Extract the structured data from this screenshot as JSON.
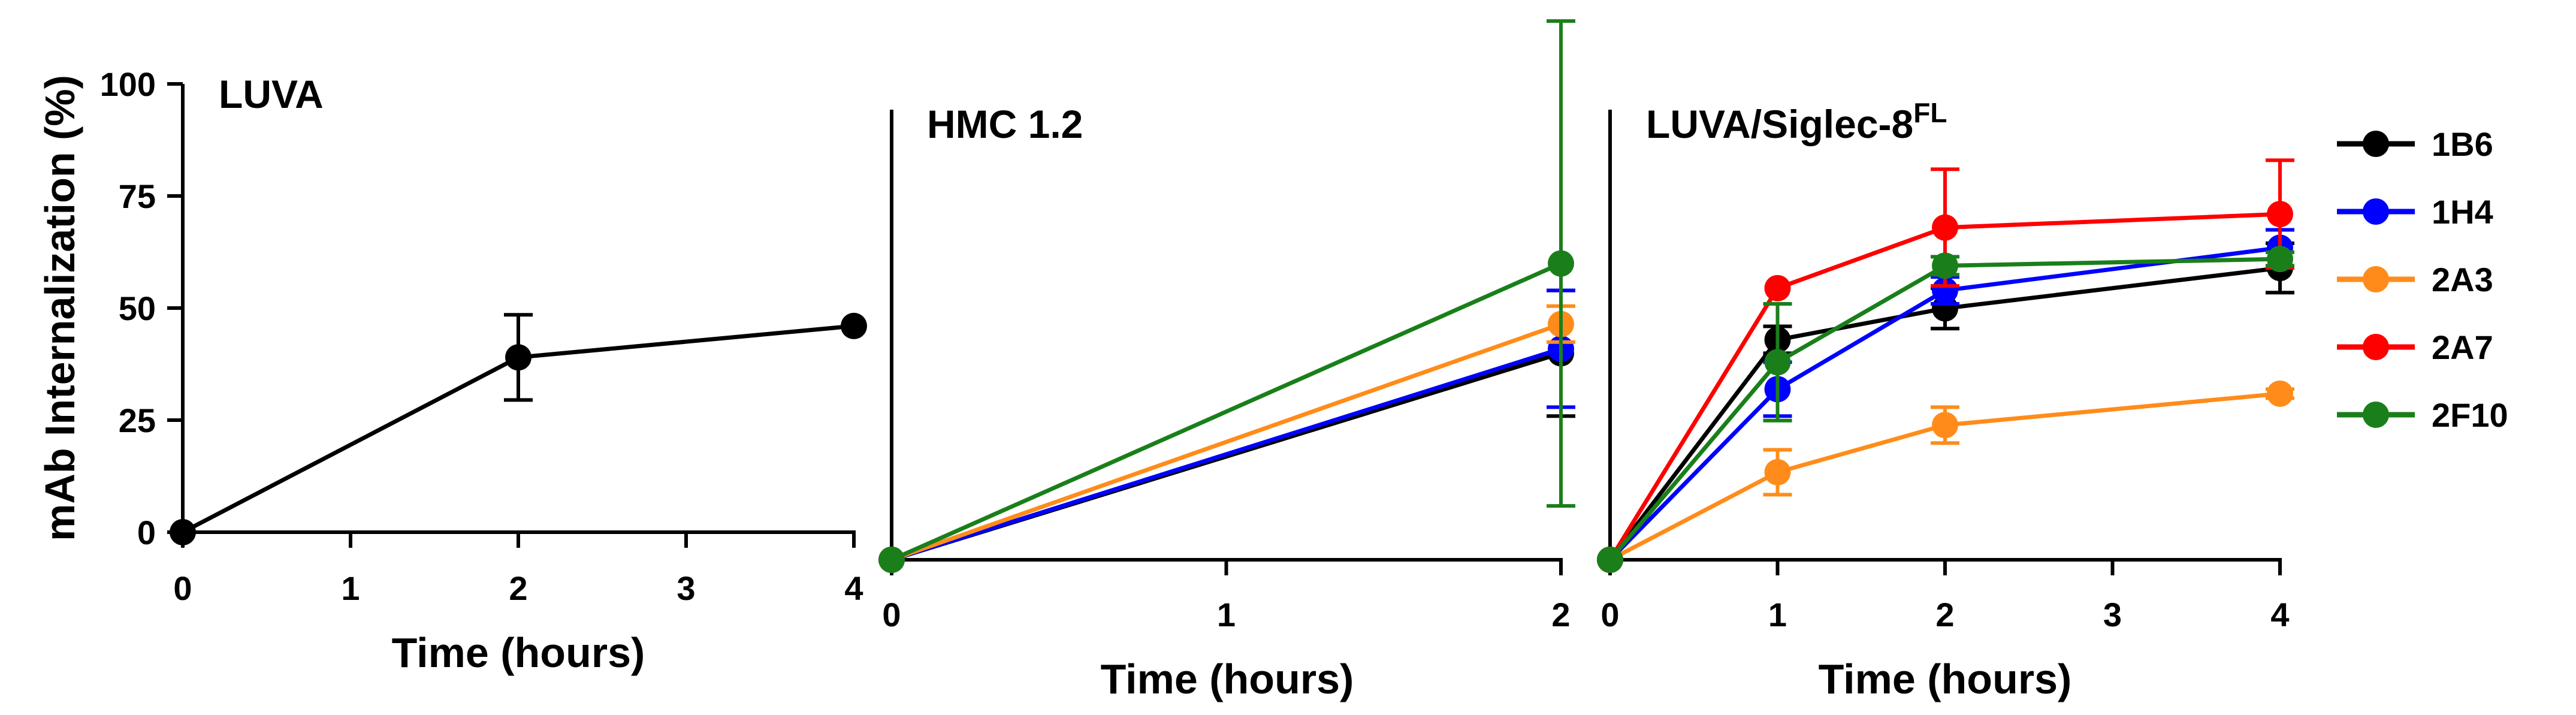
{
  "chart_data": [
    {
      "type": "line",
      "title": "LUVA",
      "ylabel": "mAb Internalization (%)",
      "xlabel": "Time (hours)",
      "xlim": [
        0,
        4
      ],
      "ylim": [
        0,
        100
      ],
      "xticks": [
        "0",
        "1",
        "2",
        "3",
        "4"
      ],
      "yticks": [
        "0",
        "25",
        "50",
        "75",
        "100"
      ],
      "series": [
        {
          "x": [
            0,
            2,
            4
          ],
          "y": [
            0,
            39,
            46
          ],
          "err": [
            0,
            9.5,
            0
          ],
          "color": "#000000"
        }
      ]
    },
    {
      "type": "line",
      "title": "HMC 1.2",
      "xlabel": "Time (hours)",
      "xlim": [
        0,
        2
      ],
      "ylim": [
        -6,
        100
      ],
      "xticks": [
        "0",
        "1",
        "2"
      ],
      "series": [
        {
          "name": "1B6",
          "x": [
            0,
            2
          ],
          "y": [
            -6,
            40
          ],
          "err": [
            0,
            14
          ],
          "color": "#000000"
        },
        {
          "name": "1H4",
          "x": [
            0,
            2
          ],
          "y": [
            -6,
            41
          ],
          "err": [
            0,
            13
          ],
          "color": "#0000ff"
        },
        {
          "name": "2A3",
          "x": [
            0,
            2
          ],
          "y": [
            -6,
            46.5
          ],
          "err": [
            0,
            4
          ],
          "color": "#ff8c1a"
        },
        {
          "name": "2F10",
          "x": [
            0,
            2
          ],
          "y": [
            -6,
            60
          ],
          "err": [
            0,
            54
          ],
          "color": "#1a7f1a"
        }
      ]
    },
    {
      "type": "line",
      "title": "LUVA/Siglec-8",
      "title_superscript": "FL",
      "xlabel": "Time (hours)",
      "xlim": [
        0,
        4
      ],
      "ylim": [
        -6,
        100
      ],
      "xticks": [
        "0",
        "1",
        "2",
        "3",
        "4"
      ],
      "series": [
        {
          "name": "1B6",
          "x": [
            0,
            1,
            2,
            4
          ],
          "y": [
            -6,
            43,
            50,
            59
          ],
          "err": [
            0,
            3,
            4.5,
            5.5
          ],
          "color": "#000000"
        },
        {
          "name": "1H4",
          "x": [
            0,
            1,
            2,
            4
          ],
          "y": [
            -6,
            32,
            54,
            63.5
          ],
          "err": [
            0,
            6,
            3,
            4
          ],
          "color": "#0000ff"
        },
        {
          "name": "2A3",
          "x": [
            0,
            1,
            2,
            4
          ],
          "y": [
            -6,
            13.5,
            24,
            31
          ],
          "err": [
            0,
            5,
            4,
            1
          ],
          "color": "#ff8c1a"
        },
        {
          "name": "2A7",
          "x": [
            0,
            1,
            2,
            4
          ],
          "y": [
            -6,
            54.5,
            68,
            71
          ],
          "err": [
            0,
            0,
            13,
            12
          ],
          "color": "#ff0000"
        },
        {
          "name": "2F10",
          "x": [
            0,
            1,
            2,
            4
          ],
          "y": [
            -6,
            38,
            59.5,
            61
          ],
          "err": [
            0,
            13,
            2,
            1.5
          ],
          "color": "#1a7f1a"
        }
      ]
    }
  ],
  "legend": {
    "placement": "right",
    "items": [
      {
        "label": "1B6",
        "color": "#000000"
      },
      {
        "label": "1H4",
        "color": "#0000ff"
      },
      {
        "label": "2A3",
        "color": "#ff8c1a"
      },
      {
        "label": "2A7",
        "color": "#ff0000"
      },
      {
        "label": "2F10",
        "color": "#1a7f1a"
      }
    ]
  }
}
